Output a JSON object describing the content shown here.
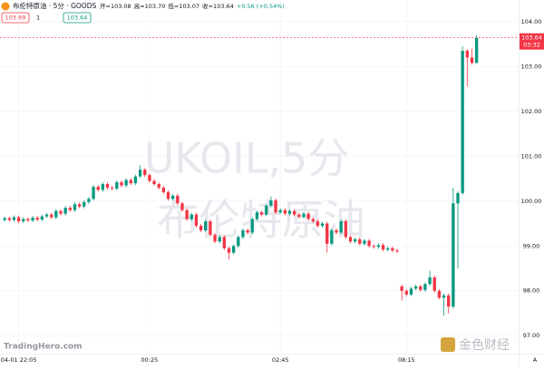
{
  "chart_data": {
    "type": "candlestick",
    "title": "布伦特原油 · 5分 · GOODS",
    "ohlc_legend": [
      "开=103.08",
      "高=103.70",
      "低=103.07",
      "收=103.64",
      "+0.56 (+0.54%)"
    ],
    "badges": [
      "103.69",
      "1",
      "103.64"
    ],
    "watermark": [
      "UKOIL,5分",
      "布伦特原油"
    ],
    "brand": "TradingHero.com",
    "logo": "金色财经",
    "axis_mode": "A",
    "last_price": {
      "value": 103.64,
      "label": "103.64"
    },
    "last_time": "03:32",
    "up_color": "#089981",
    "down_color": "#f23645",
    "grid": true,
    "open": [
      99.58,
      99.62,
      99.58,
      99.64,
      99.55,
      99.6,
      99.57,
      99.63,
      99.59,
      99.66,
      99.7,
      99.64,
      99.78,
      99.72,
      99.85,
      99.8,
      99.93,
      99.88,
      99.98,
      100.05,
      100.32,
      100.25,
      100.38,
      100.3,
      100.28,
      100.42,
      100.35,
      100.47,
      100.4,
      100.55,
      100.7,
      100.58,
      100.45,
      100.38,
      100.3,
      100.2,
      100.05,
      100.12,
      99.95,
      99.8,
      99.6,
      99.7,
      99.45,
      99.35,
      99.55,
      99.25,
      99.1,
      99.2,
      98.95,
      98.85,
      99.0,
      99.2,
      99.35,
      99.3,
      99.6,
      99.75,
      99.7,
      99.9,
      100.02,
      99.75,
      99.8,
      99.72,
      99.78,
      99.7,
      99.65,
      99.72,
      99.6,
      99.55,
      99.45,
      99.5,
      99.05,
      99.35,
      99.3,
      99.55,
      99.2,
      99.1,
      99.15,
      99.05,
      99.12,
      99.0,
      98.98,
      99.02,
      98.92,
      98.95,
      98.9,
      98.1,
      98.0,
      97.92,
      98.05,
      98.1,
      98.02,
      98.15,
      98.3,
      98.0,
      97.85,
      97.9,
      97.65,
      99.95,
      100.18,
      103.35,
      103.2,
      103.08
    ],
    "high": [
      99.66,
      99.66,
      99.68,
      99.68,
      99.64,
      99.64,
      99.67,
      99.67,
      99.7,
      99.74,
      99.74,
      99.82,
      99.82,
      99.89,
      99.89,
      99.97,
      99.97,
      100.02,
      100.09,
      100.36,
      100.36,
      100.42,
      100.42,
      100.34,
      100.46,
      100.46,
      100.51,
      100.51,
      100.59,
      100.8,
      100.74,
      100.62,
      100.49,
      100.42,
      100.34,
      100.24,
      100.16,
      100.16,
      99.99,
      99.84,
      99.74,
      99.74,
      99.49,
      99.59,
      99.59,
      99.29,
      99.24,
      99.24,
      98.99,
      99.04,
      99.24,
      99.39,
      99.39,
      99.64,
      99.79,
      99.79,
      99.94,
      100.1,
      100.06,
      99.84,
      99.84,
      99.82,
      99.82,
      99.74,
      99.76,
      99.76,
      99.64,
      99.59,
      99.54,
      99.54,
      99.39,
      99.39,
      99.59,
      99.59,
      99.24,
      99.19,
      99.19,
      99.16,
      99.16,
      99.04,
      99.06,
      99.06,
      98.99,
      98.99,
      98.94,
      98.14,
      98.04,
      98.09,
      98.14,
      98.14,
      98.19,
      98.45,
      98.34,
      98.04,
      97.94,
      97.94,
      100.3,
      100.22,
      103.45,
      103.39,
      103.4,
      103.7
    ],
    "low": [
      99.54,
      99.54,
      99.54,
      99.51,
      99.51,
      99.53,
      99.53,
      99.55,
      99.55,
      99.62,
      99.6,
      99.6,
      99.68,
      99.68,
      99.76,
      99.76,
      99.84,
      99.84,
      99.94,
      100.01,
      100.21,
      100.21,
      100.26,
      100.24,
      100.24,
      100.31,
      100.31,
      100.36,
      100.36,
      100.51,
      100.54,
      100.41,
      100.34,
      100.26,
      100.16,
      100.01,
      100.01,
      99.91,
      99.76,
      99.56,
      99.56,
      99.41,
      99.31,
      99.31,
      99.21,
      99.06,
      99.06,
      98.91,
      98.7,
      98.81,
      98.96,
      99.16,
      99.26,
      99.26,
      99.56,
      99.66,
      99.66,
      99.86,
      99.71,
      99.71,
      99.68,
      99.68,
      99.66,
      99.61,
      99.61,
      99.56,
      99.51,
      99.41,
      99.41,
      98.85,
      99.01,
      99.26,
      99.26,
      99.16,
      99.06,
      99.06,
      99.01,
      99.01,
      98.96,
      98.94,
      98.94,
      98.88,
      98.88,
      98.86,
      98.84,
      97.78,
      97.88,
      97.88,
      98.01,
      97.98,
      97.98,
      98.11,
      97.96,
      97.81,
      97.45,
      97.5,
      97.61,
      98.5,
      100.14,
      102.55,
      103.04,
      103.07
    ],
    "close": [
      99.62,
      99.58,
      99.64,
      99.55,
      99.6,
      99.57,
      99.63,
      99.59,
      99.66,
      99.7,
      99.64,
      99.78,
      99.72,
      99.85,
      99.8,
      99.93,
      99.88,
      99.98,
      100.05,
      100.32,
      100.25,
      100.38,
      100.3,
      100.28,
      100.42,
      100.35,
      100.47,
      100.4,
      100.55,
      100.7,
      100.58,
      100.45,
      100.38,
      100.3,
      100.2,
      100.05,
      100.12,
      99.95,
      99.8,
      99.6,
      99.7,
      99.45,
      99.35,
      99.55,
      99.25,
      99.1,
      99.2,
      98.95,
      98.85,
      99.0,
      99.2,
      99.35,
      99.3,
      99.6,
      99.75,
      99.7,
      99.9,
      100.02,
      99.75,
      99.8,
      99.72,
      99.78,
      99.7,
      99.65,
      99.72,
      99.6,
      99.55,
      99.45,
      99.5,
      99.05,
      99.35,
      99.3,
      99.55,
      99.2,
      99.1,
      99.15,
      99.05,
      99.12,
      99.0,
      98.98,
      99.02,
      98.92,
      98.95,
      98.9,
      98.88,
      98.0,
      97.92,
      98.05,
      98.1,
      98.02,
      98.15,
      98.3,
      98.0,
      97.85,
      97.9,
      97.65,
      99.95,
      100.18,
      103.35,
      103.2,
      103.08,
      103.64
    ],
    "xlim": [
      -1,
      110
    ],
    "xticks": [
      {
        "value": 3,
        "label": "04-01 22:05"
      },
      {
        "value": 31,
        "label": "00:25"
      },
      {
        "value": 59,
        "label": "02:45"
      },
      {
        "value": 86,
        "label": "08:15"
      }
    ],
    "ylim": [
      96.6,
      104.22
    ],
    "yticks": [
      {
        "value": 97,
        "label": "97.00"
      },
      {
        "value": 98,
        "label": "98.00"
      },
      {
        "value": 99,
        "label": "99.00"
      },
      {
        "value": 100,
        "label": "100.00"
      },
      {
        "value": 101,
        "label": "101.00"
      },
      {
        "value": 102,
        "label": "102.00"
      },
      {
        "value": 103,
        "label": "103.00"
      },
      {
        "value": 104,
        "label": "104.00"
      }
    ]
  }
}
